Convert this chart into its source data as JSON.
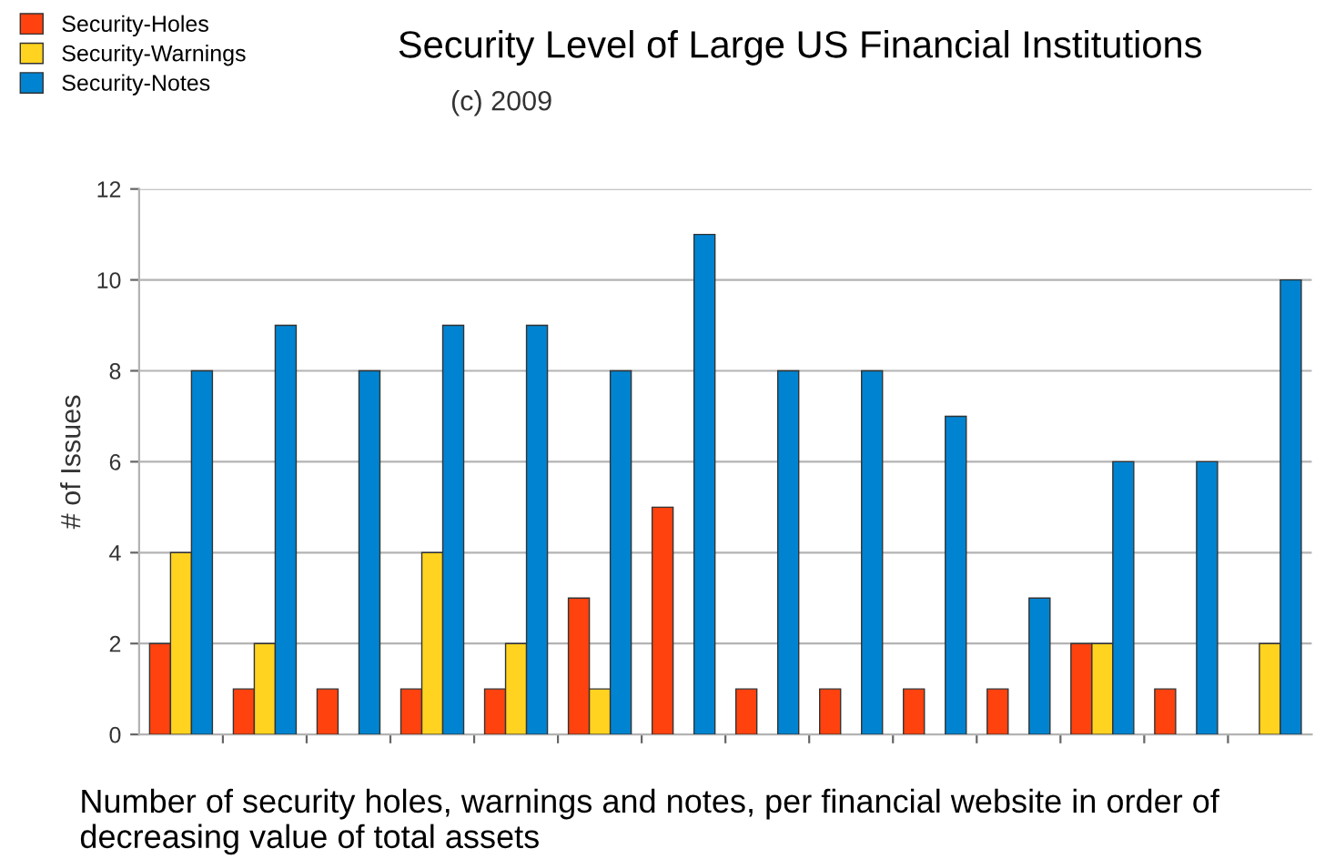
{
  "chart_data": {
    "type": "bar",
    "title": "Security Level of Large US Financial Institutions",
    "subtitle": "(c) 2009",
    "ylabel": "# of Issues",
    "categories": [
      null,
      null,
      null,
      null,
      null,
      null,
      null,
      null,
      null,
      null,
      null,
      null,
      null,
      null
    ],
    "series": [
      {
        "name": "Security-Holes",
        "color": "#ff420e",
        "values": [
          2,
          1,
          1,
          1,
          1,
          3,
          5,
          1,
          1,
          1,
          1,
          2,
          1,
          null
        ]
      },
      {
        "name": "Security-Warnings",
        "color": "#ffd320",
        "values": [
          4,
          2,
          null,
          4,
          2,
          1,
          null,
          null,
          null,
          null,
          null,
          2,
          null,
          2
        ]
      },
      {
        "name": "Security-Notes",
        "color": "#0084d1",
        "values": [
          8,
          9,
          8,
          9,
          9,
          8,
          11,
          8,
          8,
          7,
          3,
          6,
          6,
          10
        ]
      }
    ],
    "ylim": [
      0,
      12
    ],
    "yticks": [
      0,
      2,
      4,
      6,
      8,
      10,
      12
    ],
    "grid": "y",
    "legend": "top left",
    "annotations": [
      "Number of security holes, warnings and notes, per financial website in order of decreasing value of total assets"
    ]
  }
}
